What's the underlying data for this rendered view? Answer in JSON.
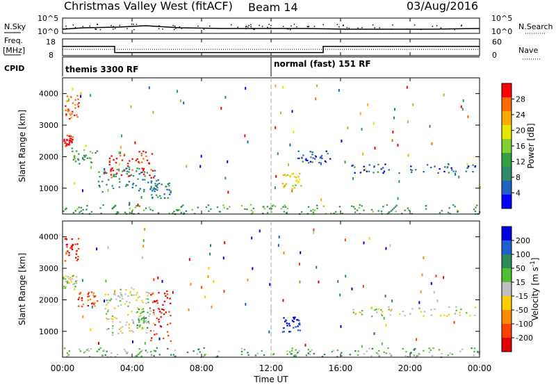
{
  "header": {
    "station": "Christmas Valley West (fitACF)",
    "beam": "Beam 14",
    "date": "03/Aug/2016"
  },
  "strip_labels": {
    "nsky": "N.Sky",
    "nsearch": "N.Search",
    "freq_line1": "Freq.",
    "freq_line2": "[MHz]",
    "nave": "Nave",
    "cpid": "CPID"
  },
  "strip_ticks": {
    "noise_left": [
      "10^5",
      "10^0"
    ],
    "noise_right": [
      "10^5",
      "10^0"
    ],
    "freq_left": [
      "18",
      "8"
    ],
    "nave_right": [
      "60",
      "0"
    ]
  },
  "cpid_segments": [
    {
      "label": "themis 3300 RF",
      "start_hour": 0
    },
    {
      "label": "normal (fast) 151 RF",
      "start_hour": 12
    }
  ],
  "freq_steps": [
    {
      "from": 0,
      "to": 3,
      "value": 13.5
    },
    {
      "from": 3,
      "to": 15,
      "value": 9.8
    },
    {
      "from": 15,
      "to": 24,
      "value": 13.5
    }
  ],
  "chart_data": [
    {
      "type": "heatmap",
      "ylabel": "Slant Range [km]",
      "x_range_hours": [
        0,
        24
      ],
      "ylim": [
        180,
        4500
      ],
      "y_ticks": [
        1000,
        2000,
        3000,
        4000
      ],
      "colorbar": {
        "label": "Power [dB]",
        "tick_labels": [
          "28",
          "24",
          "20",
          "16",
          "12",
          "8",
          "4"
        ],
        "colors": [
          "#ff0000",
          "#ff6a00",
          "#ffaa00",
          "#e6e600",
          "#7fd030",
          "#2f9f3f",
          "#2f8a6a",
          "#2060c0",
          "#0000ff"
        ]
      },
      "regions": [
        {
          "t": [
            0.1,
            0.9
          ],
          "r": [
            3200,
            4000
          ],
          "level": 1
        },
        {
          "t": [
            0.05,
            0.55
          ],
          "r": [
            2350,
            2700
          ],
          "level": 0
        },
        {
          "t": [
            0.5,
            2.0
          ],
          "r": [
            1800,
            2300
          ],
          "level": 5
        },
        {
          "t": [
            2.4,
            5.2
          ],
          "r": [
            1350,
            2200
          ],
          "level": 0
        },
        {
          "t": [
            2.0,
            5.5
          ],
          "r": [
            900,
            1700
          ],
          "level": 6
        },
        {
          "t": [
            5.0,
            6.2
          ],
          "r": [
            700,
            1200
          ],
          "level": 6
        },
        {
          "t": [
            12.6,
            13.8
          ],
          "r": [
            1000,
            1500
          ],
          "level": 3
        },
        {
          "t": [
            16.5,
            23.8
          ],
          "r": [
            1500,
            1800
          ],
          "level": 7
        },
        {
          "t": [
            13.5,
            15.5
          ],
          "r": [
            1800,
            2200
          ],
          "level": 7
        },
        {
          "t": [
            0.0,
            24.0
          ],
          "r": [
            200,
            500
          ],
          "level": 5
        }
      ]
    },
    {
      "type": "heatmap",
      "ylabel": "Slant Range [km]",
      "xlabel": "Time UT",
      "x_range_hours": [
        0,
        24
      ],
      "ylim": [
        180,
        4500
      ],
      "y_ticks": [
        1000,
        2000,
        3000,
        4000
      ],
      "x_tick_labels": [
        "00:00",
        "04:00",
        "08:00",
        "12:00",
        "16:00",
        "20:00",
        "00:00"
      ],
      "colorbar": {
        "label": "Velocity [m s^-1]",
        "tick_labels": [
          "200",
          "100",
          "50",
          "15",
          "-15",
          "-50",
          "-100",
          "-200"
        ],
        "colors": [
          "#0000e0",
          "#1e5fd0",
          "#2a8a5a",
          "#50c030",
          "#bebebe",
          "#ffcc00",
          "#ff8c00",
          "#ff4000",
          "#e00000"
        ]
      },
      "regions": [
        {
          "t": [
            0.1,
            0.9
          ],
          "r": [
            3200,
            4000
          ],
          "level": 8
        },
        {
          "t": [
            0.0,
            0.8
          ],
          "r": [
            2300,
            2800
          ],
          "level": 4
        },
        {
          "t": [
            0.8,
            2.0
          ],
          "r": [
            1800,
            2300
          ],
          "level": 7
        },
        {
          "t": [
            2.4,
            5.3
          ],
          "r": [
            900,
            2400
          ],
          "level": 4
        },
        {
          "t": [
            4.2,
            5.0
          ],
          "r": [
            1100,
            1800
          ],
          "level": 3
        },
        {
          "t": [
            5.0,
            6.2
          ],
          "r": [
            700,
            2300
          ],
          "level": 8
        },
        {
          "t": [
            12.6,
            13.8
          ],
          "r": [
            1000,
            1500
          ],
          "level": 0
        },
        {
          "t": [
            16.5,
            23.8
          ],
          "r": [
            1500,
            1800
          ],
          "level": 4
        },
        {
          "t": [
            0.0,
            24.0
          ],
          "r": [
            200,
            500
          ],
          "level": 3
        }
      ]
    }
  ]
}
